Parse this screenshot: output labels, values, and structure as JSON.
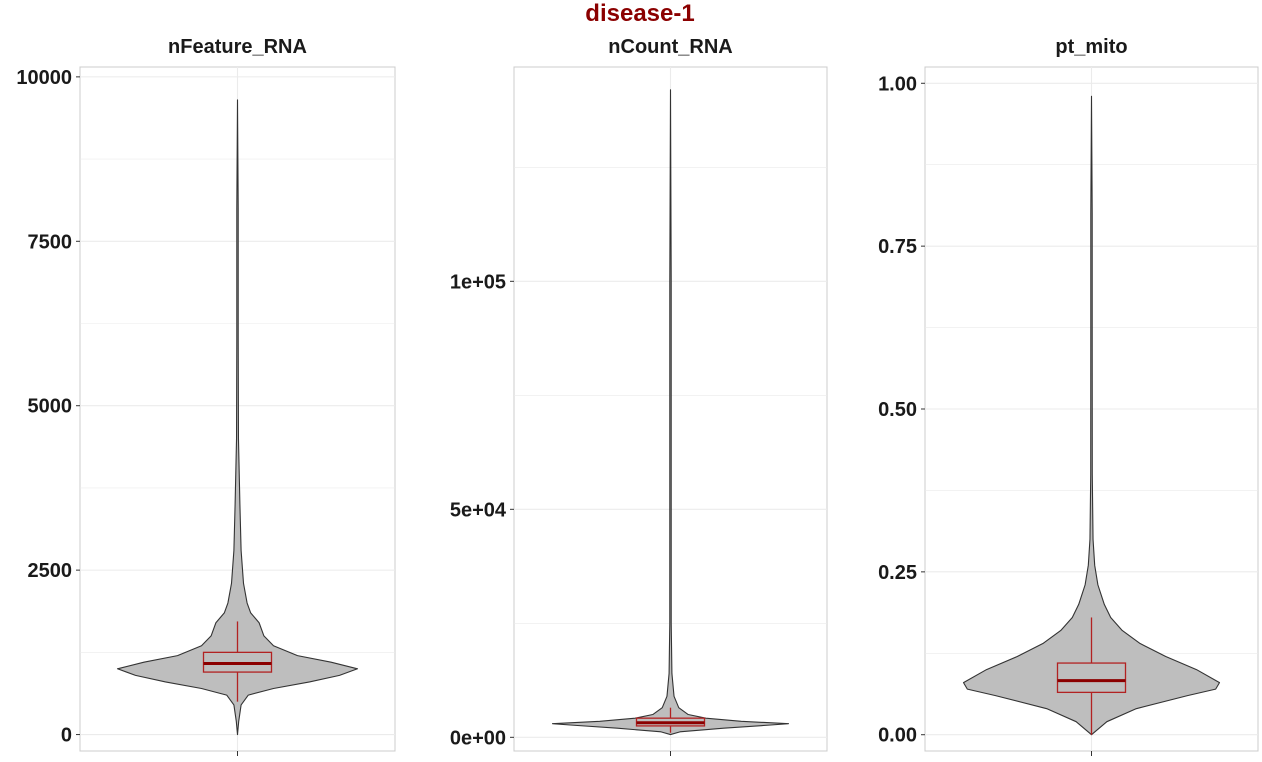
{
  "title": "disease-1",
  "colors": {
    "title": "#8b0000",
    "violin_fill": "#bebebe",
    "violin_stroke": "#333333",
    "box_stroke": "#b22222",
    "median": "#8b0000",
    "grid": "#ebebeb",
    "panel_border": "#cccccc"
  },
  "chart_data": [
    {
      "type": "violin",
      "title": "nFeature_RNA",
      "ylim": [
        -250,
        10150
      ],
      "yticks": [
        0,
        2500,
        5000,
        7500,
        10000
      ],
      "ytick_labels": [
        "0",
        "2500",
        "5000",
        "7500",
        "10000"
      ],
      "grid": true,
      "violin": {
        "ymin": 0,
        "ymax": 9650,
        "profile": [
          [
            0,
            0
          ],
          [
            200,
            0.01
          ],
          [
            450,
            0.03
          ],
          [
            600,
            0.09
          ],
          [
            700,
            0.3
          ],
          [
            800,
            0.6
          ],
          [
            900,
            0.85
          ],
          [
            1000,
            1.0
          ],
          [
            1100,
            0.78
          ],
          [
            1200,
            0.5
          ],
          [
            1350,
            0.3
          ],
          [
            1500,
            0.22
          ],
          [
            1600,
            0.2
          ],
          [
            1700,
            0.18
          ],
          [
            1850,
            0.11
          ],
          [
            2000,
            0.08
          ],
          [
            2300,
            0.05
          ],
          [
            2800,
            0.03
          ],
          [
            3500,
            0.02
          ],
          [
            4500,
            0.008
          ],
          [
            6000,
            0.005
          ],
          [
            8000,
            0.003
          ],
          [
            9650,
            0
          ]
        ]
      },
      "box": {
        "q1": 950,
        "median": 1080,
        "q3": 1250,
        "whisker_low": 500,
        "whisker_high": 1720
      }
    },
    {
      "type": "violin",
      "title": "nCount_RNA",
      "ylim": [
        -3000,
        147000
      ],
      "yticks": [
        0,
        50000,
        100000
      ],
      "ytick_labels": [
        "0e+00",
        "5e+04",
        "1e+05"
      ],
      "grid": true,
      "violin": {
        "ymin": 600,
        "ymax": 142000,
        "profile": [
          [
            600,
            0
          ],
          [
            1200,
            0.08
          ],
          [
            2000,
            0.45
          ],
          [
            2700,
            0.85
          ],
          [
            3000,
            1.0
          ],
          [
            3500,
            0.6
          ],
          [
            4200,
            0.3
          ],
          [
            5000,
            0.15
          ],
          [
            6500,
            0.07
          ],
          [
            9000,
            0.03
          ],
          [
            14000,
            0.012
          ],
          [
            25000,
            0.006
          ],
          [
            50000,
            0.004
          ],
          [
            100000,
            0.003
          ],
          [
            142000,
            0
          ]
        ]
      },
      "box": {
        "q1": 2500,
        "median": 3200,
        "q3": 4200,
        "whisker_low": 1000,
        "whisker_high": 6500
      }
    },
    {
      "type": "violin",
      "title": "pt_mito",
      "ylim": [
        -0.025,
        1.025
      ],
      "yticks": [
        0.0,
        0.25,
        0.5,
        0.75,
        1.0
      ],
      "ytick_labels": [
        "0.00",
        "0.25",
        "0.50",
        "0.75",
        "1.00"
      ],
      "grid": true,
      "violin": {
        "ymin": 0,
        "ymax": 0.98,
        "profile": [
          [
            0,
            0
          ],
          [
            0.02,
            0.12
          ],
          [
            0.04,
            0.35
          ],
          [
            0.06,
            0.75
          ],
          [
            0.07,
            0.97
          ],
          [
            0.08,
            1.0
          ],
          [
            0.1,
            0.82
          ],
          [
            0.12,
            0.58
          ],
          [
            0.14,
            0.38
          ],
          [
            0.16,
            0.24
          ],
          [
            0.18,
            0.15
          ],
          [
            0.2,
            0.1
          ],
          [
            0.23,
            0.05
          ],
          [
            0.26,
            0.025
          ],
          [
            0.3,
            0.012
          ],
          [
            0.4,
            0.006
          ],
          [
            0.6,
            0.004
          ],
          [
            0.8,
            0.003
          ],
          [
            0.98,
            0
          ]
        ]
      },
      "box": {
        "q1": 0.065,
        "median": 0.083,
        "q3": 0.11,
        "whisker_low": 0.0,
        "whisker_high": 0.18
      }
    }
  ]
}
